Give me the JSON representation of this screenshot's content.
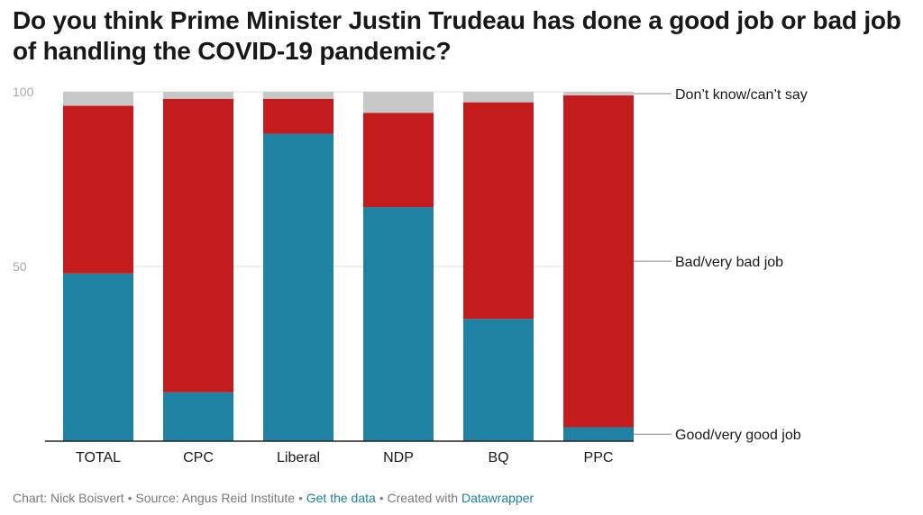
{
  "title": "Do you think Prime Minister Justin Trudeau has done a good job or bad job of handling the COVID-19 pandemic?",
  "footer": {
    "credit": "Chart: Nick Boisvert",
    "source": "Source: Angus Reid Institute",
    "get_data": "Get the data",
    "created_with": "Created with",
    "tool": "Datawrapper",
    "separator": "•"
  },
  "colors": {
    "good": "#1f82a3",
    "bad": "#c41c1c",
    "dont_know": "#c8c8c8",
    "axis_text": "#aaaaaa",
    "link": "#1d81a2"
  },
  "chart_data": {
    "type": "bar",
    "stacked": true,
    "categories": [
      "TOTAL",
      "CPC",
      "Liberal",
      "NDP",
      "BQ",
      "PPC"
    ],
    "series": [
      {
        "name": "Good/very good job",
        "color": "#1f82a3",
        "values": [
          48,
          14,
          88,
          67,
          35,
          4
        ]
      },
      {
        "name": "Bad/very bad job",
        "color": "#c41c1c",
        "values": [
          48,
          84,
          10,
          27,
          62,
          95
        ]
      },
      {
        "name": "Don’t know/can’t say",
        "color": "#c8c8c8",
        "values": [
          4,
          2,
          2,
          6,
          3,
          1
        ]
      }
    ],
    "ylim": [
      0,
      100
    ],
    "yticks": [
      "100",
      "50"
    ],
    "ytick_values": [
      100,
      50
    ],
    "legend_placement": "right (direct labels)"
  }
}
